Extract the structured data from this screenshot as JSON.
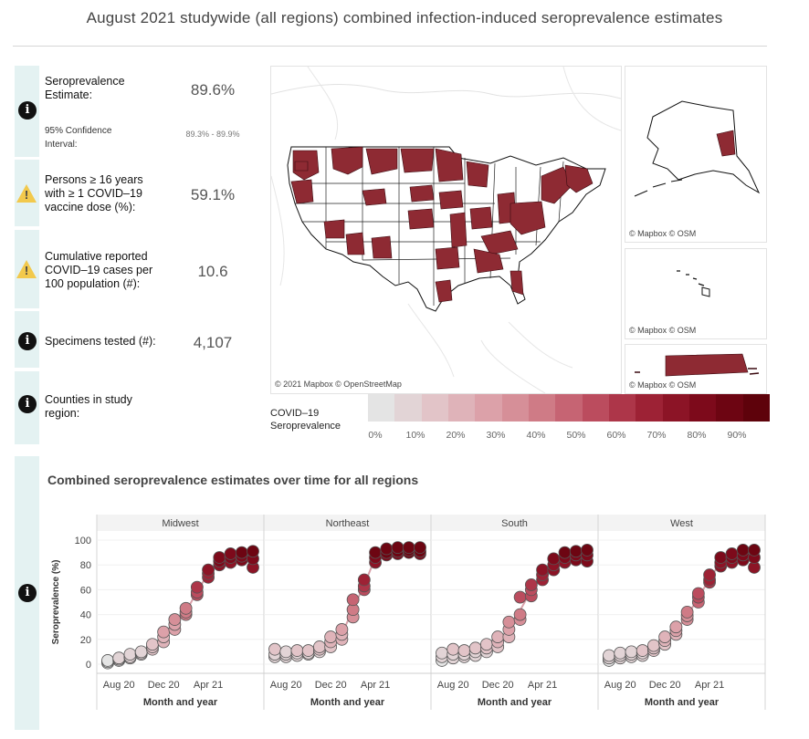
{
  "title": "August 2021 studywide (all regions) combined infection-induced seroprevalence estimates",
  "metrics": {
    "seroprevalence": {
      "label_line1": "Seroprevalence",
      "label_line2": "Estimate:",
      "value": "89.6%",
      "icon": "info-icon"
    },
    "confidence": {
      "label_line1": "95% Confidence",
      "label_line2": "Interval:",
      "value": "89.3% - 89.9%"
    },
    "vaccine": {
      "label_line1": "Persons ≥ 16 years",
      "label_line2": "with ≥ 1 COVID–19",
      "label_line3": "vaccine dose (%):",
      "value": "59.1%",
      "icon": "warning-icon"
    },
    "cases": {
      "label_line1": "Cumulative reported",
      "label_line2": "COVID–19 cases per",
      "label_line3": "100 population (#):",
      "value": "10.6",
      "icon": "warning-icon"
    },
    "specimens": {
      "label": "Specimens tested (#):",
      "value": "4,107",
      "icon": "info-icon"
    },
    "counties": {
      "label_line1": "Counties in study",
      "label_line2": "region:",
      "value": "",
      "icon": "info-icon"
    }
  },
  "map": {
    "credit_main": "© 2021 Mapbox  © OpenStreetMap",
    "credit_inset": "© Mapbox  © OSM",
    "fill_color": "#8e2a33"
  },
  "legend": {
    "title_line1": "COVID–19",
    "title_line2": "Seroprevalence",
    "ticks": [
      "0%",
      "10%",
      "20%",
      "30%",
      "40%",
      "50%",
      "60%",
      "70%",
      "80%",
      "90%"
    ],
    "colors": [
      "#e4e4e4",
      "#e2d4d6",
      "#e2c4c8",
      "#dfb3b9",
      "#dca1a9",
      "#d68f98",
      "#cf7b86",
      "#c66473",
      "#bb4c5e",
      "#ad3649",
      "#9d2235",
      "#8c1426",
      "#7d0a1b",
      "#6d0512",
      "#5e020b"
    ]
  },
  "chart_title": "Combined seroprevalence estimates over time for all regions",
  "chart_data": {
    "type": "scatter",
    "title": "Combined seroprevalence estimates over time for all regions",
    "xlabel": "Month and year",
    "ylabel": "Seroprevalence (%)",
    "ylim": [
      0,
      100
    ],
    "yticks": [
      0,
      20,
      40,
      60,
      80,
      100
    ],
    "xticks": [
      "Aug 20",
      "Dec 20",
      "Apr 21"
    ],
    "months": [
      "Jul 20",
      "Aug 20",
      "Sep 20",
      "Oct 20",
      "Nov 20",
      "Dec 20",
      "Jan 21",
      "Feb 21",
      "Mar 21",
      "Apr 21",
      "May 21",
      "Jun 21",
      "Jul 21",
      "Aug 21"
    ],
    "panels": [
      {
        "name": "Midwest",
        "months": [
          0,
          1,
          2,
          3,
          4,
          5,
          6,
          7,
          8,
          9,
          10,
          11,
          12,
          13
        ],
        "values": [
          [
            1,
            2,
            3
          ],
          [
            3,
            4,
            5
          ],
          [
            5,
            6,
            8
          ],
          [
            8,
            9,
            10
          ],
          [
            12,
            14,
            16
          ],
          [
            18,
            22,
            26
          ],
          [
            28,
            32,
            36
          ],
          [
            40,
            42,
            45
          ],
          [
            56,
            58,
            62
          ],
          [
            70,
            73,
            76
          ],
          [
            80,
            83,
            86
          ],
          [
            82,
            86,
            89
          ],
          [
            84,
            87,
            90
          ],
          [
            78,
            85,
            91
          ]
        ]
      },
      {
        "name": "Northeast",
        "months": [
          0,
          1,
          2,
          3,
          4,
          5,
          6,
          7,
          8,
          9,
          10,
          11,
          12,
          13
        ],
        "values": [
          [
            6,
            8,
            12
          ],
          [
            6,
            8,
            10
          ],
          [
            7,
            9,
            11
          ],
          [
            8,
            9,
            11
          ],
          [
            10,
            12,
            14
          ],
          [
            14,
            18,
            22
          ],
          [
            20,
            24,
            28
          ],
          [
            38,
            44,
            52
          ],
          [
            60,
            63,
            68
          ],
          [
            82,
            86,
            90
          ],
          [
            88,
            90,
            93
          ],
          [
            89,
            91,
            94
          ],
          [
            90,
            92,
            94
          ],
          [
            89,
            91,
            94
          ]
        ]
      },
      {
        "name": "South",
        "months": [
          0,
          1,
          2,
          3,
          4,
          5,
          6,
          7,
          8,
          9,
          10,
          11,
          12,
          13
        ],
        "values": [
          [
            3,
            6,
            9
          ],
          [
            5,
            8,
            12
          ],
          [
            6,
            8,
            11
          ],
          [
            7,
            10,
            13
          ],
          [
            10,
            13,
            16
          ],
          [
            14,
            18,
            22
          ],
          [
            22,
            28,
            34
          ],
          [
            36,
            40,
            54
          ],
          [
            55,
            60,
            64
          ],
          [
            68,
            72,
            76
          ],
          [
            76,
            80,
            85
          ],
          [
            82,
            86,
            90
          ],
          [
            84,
            88,
            91
          ],
          [
            83,
            88,
            92
          ]
        ]
      },
      {
        "name": "West",
        "months": [
          0,
          1,
          2,
          3,
          4,
          5,
          6,
          7,
          8,
          9,
          10,
          11,
          12,
          13
        ],
        "values": [
          [
            3,
            5,
            7
          ],
          [
            5,
            7,
            9
          ],
          [
            6,
            8,
            10
          ],
          [
            7,
            9,
            11
          ],
          [
            11,
            13,
            15
          ],
          [
            16,
            19,
            22
          ],
          [
            24,
            27,
            30
          ],
          [
            36,
            39,
            42
          ],
          [
            50,
            54,
            57
          ],
          [
            66,
            68,
            72
          ],
          [
            79,
            82,
            86
          ],
          [
            82,
            86,
            89
          ],
          [
            84,
            88,
            92
          ],
          [
            78,
            86,
            92
          ]
        ]
      }
    ]
  }
}
